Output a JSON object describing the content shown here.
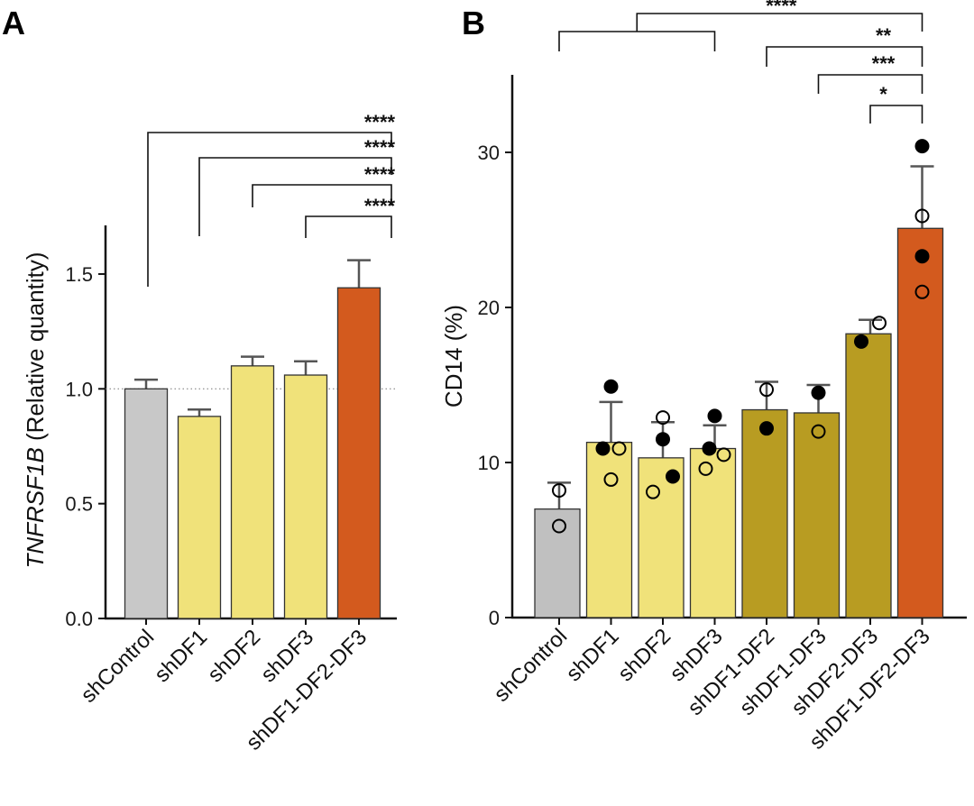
{
  "figure": {
    "panel_labels": [
      "A",
      "B"
    ]
  },
  "chart_data": [
    {
      "type": "bar",
      "panel": "A",
      "title": "",
      "xlabel": "",
      "ylabel_italic": "TNFRSF1B",
      "ylabel_rest": " (Relative quantity)",
      "ylim": [
        0,
        1.7
      ],
      "yticks": [
        0.0,
        0.5,
        1.0,
        1.5
      ],
      "ytick_labels": [
        "0.0",
        "0.5",
        "1.0",
        "1.5"
      ],
      "reference_line": 1.0,
      "categories": [
        "shControl",
        "shDF1",
        "shDF2",
        "shDF3",
        "shDF1-DF2-DF3"
      ],
      "values": [
        1.0,
        0.88,
        1.1,
        1.06,
        1.44
      ],
      "error_upper": [
        1.04,
        0.91,
        1.14,
        1.12,
        1.56
      ],
      "colors": [
        "#c8c8c8",
        "#f0e27a",
        "#f0e27a",
        "#f0e27a",
        "#d35a1e"
      ],
      "significance": [
        {
          "from": 0,
          "to": 4,
          "label": "****",
          "y": 1.96
        },
        {
          "from": 1,
          "to": 4,
          "label": "****",
          "y": 1.79
        },
        {
          "from": 2,
          "to": 4,
          "label": "****",
          "y": 1.6
        },
        {
          "from": 3,
          "to": 4,
          "label": "****",
          "y": 1.39
        }
      ],
      "grid": false,
      "legend": "none"
    },
    {
      "type": "bar",
      "panel": "B",
      "title": "",
      "xlabel": "",
      "ylabel": "CD14 (%)",
      "ylim": [
        0,
        35
      ],
      "yticks": [
        0,
        10,
        20,
        30
      ],
      "ytick_labels": [
        "0",
        "10",
        "20",
        "30"
      ],
      "categories": [
        "shControl",
        "shDF1",
        "shDF2",
        "shDF3",
        "shDF1-DF2",
        "shDF1-DF3",
        "shDF2-DF3",
        "shDF1-DF2-DF3"
      ],
      "values": [
        7.0,
        11.3,
        10.3,
        10.9,
        13.4,
        13.2,
        18.3,
        25.1
      ],
      "error_upper": [
        8.7,
        13.9,
        12.6,
        12.4,
        15.2,
        15.0,
        19.2,
        29.1
      ],
      "colors": [
        "#c0c0c0",
        "#f0e27a",
        "#f0e27a",
        "#f0e27a",
        "#b89c22",
        "#b89c22",
        "#b89c22",
        "#d35a1e"
      ],
      "points": [
        [
          {
            "v": 8.2,
            "filled": false,
            "dx": 0
          },
          {
            "v": 5.9,
            "filled": false,
            "dx": 0
          }
        ],
        [
          {
            "v": 14.9,
            "filled": true,
            "dx": 0
          },
          {
            "v": 10.9,
            "filled": true,
            "dx": -9
          },
          {
            "v": 10.9,
            "filled": false,
            "dx": 9
          },
          {
            "v": 8.9,
            "filled": false,
            "dx": 0
          }
        ],
        [
          {
            "v": 12.9,
            "filled": false,
            "dx": 0
          },
          {
            "v": 11.5,
            "filled": true,
            "dx": 0
          },
          {
            "v": 9.1,
            "filled": true,
            "dx": 11
          },
          {
            "v": 8.1,
            "filled": false,
            "dx": -11
          }
        ],
        [
          {
            "v": 13.0,
            "filled": true,
            "dx": 0
          },
          {
            "v": 10.9,
            "filled": true,
            "dx": -6
          },
          {
            "v": 10.5,
            "filled": false,
            "dx": 10
          },
          {
            "v": 9.6,
            "filled": false,
            "dx": -10
          }
        ],
        [
          {
            "v": 14.7,
            "filled": false,
            "dx": 0
          },
          {
            "v": 12.2,
            "filled": true,
            "dx": 0
          }
        ],
        [
          {
            "v": 14.5,
            "filled": true,
            "dx": 0
          },
          {
            "v": 12.0,
            "filled": false,
            "dx": 0
          }
        ],
        [
          {
            "v": 19.0,
            "filled": false,
            "dx": 10
          },
          {
            "v": 17.8,
            "filled": true,
            "dx": -10
          }
        ],
        [
          {
            "v": 30.4,
            "filled": true,
            "dx": 0
          },
          {
            "v": 25.9,
            "filled": false,
            "dx": 0
          },
          {
            "v": 23.3,
            "filled": true,
            "dx": 0
          },
          {
            "v": 21.0,
            "filled": false,
            "dx": 0
          }
        ]
      ],
      "significance": [
        {
          "group_from": [
            0,
            3
          ],
          "to": 7,
          "label": "****"
        },
        {
          "from": 4,
          "to": 7,
          "label": "**"
        },
        {
          "from": 5,
          "to": 7,
          "label": "***"
        },
        {
          "from": 6,
          "to": 7,
          "label": "*"
        }
      ],
      "grid": false,
      "legend": "none"
    }
  ]
}
